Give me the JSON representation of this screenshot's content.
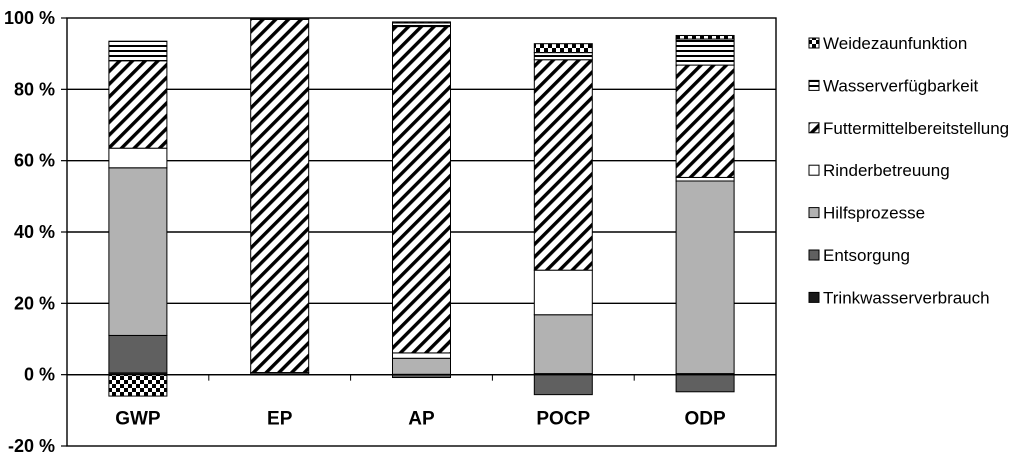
{
  "chart_data": {
    "type": "bar",
    "stacked": true,
    "categories": [
      "GWP",
      "EP",
      "AP",
      "POCP",
      "ODP"
    ],
    "ylim": [
      -20,
      100
    ],
    "ytick_values": [
      -20,
      0,
      20,
      40,
      60,
      80,
      100
    ],
    "ytick_labels": [
      "-20 %",
      "0 %",
      "20 %",
      "40 %",
      "60 %",
      "80 %",
      "100 %"
    ],
    "grid": true,
    "legend_position": "right",
    "series": [
      {
        "name": "Trinkwasserverbrauch",
        "values": [
          0.5,
          0.1,
          0.1,
          0.3,
          0.3
        ],
        "pattern": "solid-black"
      },
      {
        "name": "Entsorgung",
        "values": [
          10.5,
          0.5,
          -0.8,
          -5.6,
          -4.8
        ],
        "pattern": "solid-darkgray"
      },
      {
        "name": "Hilfsprozesse",
        "values": [
          47,
          0,
          4.5,
          16.5,
          54
        ],
        "pattern": "solid-lightgray"
      },
      {
        "name": "Rinderbetreuung",
        "values": [
          5.5,
          0,
          1.5,
          12.5,
          1
        ],
        "pattern": "white"
      },
      {
        "name": "Futtermittelbereitstellung",
        "values": [
          24.5,
          99,
          91.5,
          59,
          31.5
        ],
        "pattern": "diagonal-hatch"
      },
      {
        "name": "Wasserverfügbarkeit",
        "values": [
          5.5,
          0.3,
          1,
          2,
          7.3
        ],
        "pattern": "horizontal-stripes"
      },
      {
        "name": "Weidezaunfunktion",
        "values": [
          -6,
          0,
          0.3,
          2.5,
          1
        ],
        "pattern": "checker"
      }
    ],
    "legend_order": [
      "Weidezaunfunktion",
      "Wasserverfügbarkeit",
      "Futtermittelbereitstellung",
      "Rinderbetreuung",
      "Hilfsprozesse",
      "Entsorgung",
      "Trinkwasserverbrauch"
    ]
  }
}
